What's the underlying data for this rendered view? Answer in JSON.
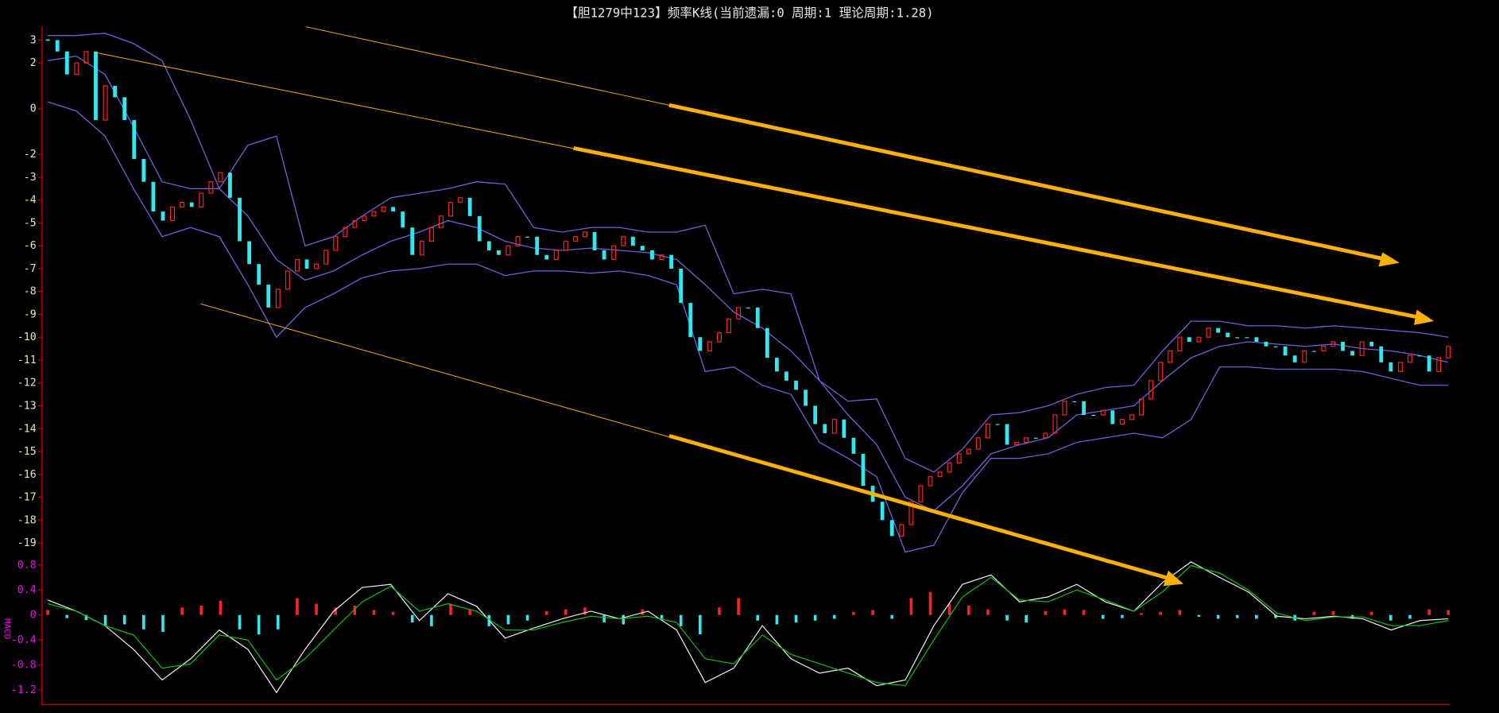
{
  "chart_data": [
    {
      "type": "candlestick",
      "title": "【胆1279中123】频率K线(当前遗漏:0 周期:1 理论周期:1.28)",
      "up_color": "#ff2020",
      "down_color": "#30e8f0",
      "band_color": "#6a62d8",
      "close": [
        3,
        2.5,
        1.5,
        2,
        2.5,
        -0.5,
        1,
        0.5,
        -0.5,
        -2.2,
        -3.2,
        -4.5,
        -4.9,
        -4.3,
        -4.1,
        -4.3,
        -3.7,
        -3.2,
        -2.8,
        -3.9,
        -5.8,
        -6.8,
        -7.7,
        -8.7,
        -7.9,
        -7.1,
        -6.6,
        -7,
        -6.8,
        -6.2,
        -5.6,
        -5.2,
        -4.9,
        -4.7,
        -4.5,
        -4.3,
        -4.5,
        -5.2,
        -6.4,
        -5.8,
        -5.2,
        -4.7,
        -4.1,
        -3.9,
        -4.7,
        -5.8,
        -6.2,
        -6.4,
        -6,
        -5.6,
        -5.6,
        -6.4,
        -6.6,
        -6.2,
        -5.8,
        -5.6,
        -5.4,
        -6.2,
        -6.6,
        -6,
        -5.6,
        -6,
        -6.2,
        -6.6,
        -6.4,
        -7,
        -8.5,
        -10,
        -10.6,
        -10.2,
        -9.8,
        -9.2,
        -8.7,
        -8.7,
        -9.6,
        -10.9,
        -11.5,
        -11.9,
        -12.3,
        -13,
        -13.8,
        -14.2,
        -13.6,
        -14.4,
        -15.1,
        -16.5,
        -17.2,
        -18,
        -18.7,
        -18.2,
        -17.2,
        -16.5,
        -16.1,
        -15.9,
        -15.5,
        -15.1,
        -14.9,
        -14.4,
        -13.8,
        -13.8,
        -14.7,
        -14.6,
        -14.4,
        -14.4,
        -14.2,
        -13.4,
        -12.8,
        -12.8,
        -13.4,
        -13.4,
        -13.2,
        -13.8,
        -13.6,
        -13.4,
        -12.7,
        -11.9,
        -11.1,
        -10.6,
        -10,
        -10.2,
        -10,
        -9.6,
        -9.8,
        -10,
        -10,
        -10,
        -10.2,
        -10.4,
        -10.4,
        -10.8,
        -11.1,
        -10.6,
        -10.6,
        -10.4,
        -10.2,
        -10.6,
        -10.8,
        -10.2,
        -10.4,
        -11.1,
        -11.5,
        -11.1,
        -10.8,
        -10.8,
        -11.5,
        -10.9,
        -10.4
      ],
      "bands": {
        "upper": [
          3.2,
          3.2,
          3.3,
          2.85,
          2.1,
          -0.5,
          -3.5,
          -1.6,
          -1.2,
          -6,
          -5.6,
          -4.7,
          -3.9,
          -3.7,
          -3.5,
          -3.2,
          -3.3,
          -5.2,
          -5.4,
          -5.2,
          -5.2,
          -5.4,
          -5.4,
          -5.1,
          -8.1,
          -7.9,
          -8.1,
          -11.9,
          -12.8,
          -12.7,
          -15.3,
          -15.9,
          -14.9,
          -13.4,
          -13.3,
          -13,
          -12.5,
          -12.2,
          -12.1,
          -10.6,
          -9.3,
          -9.3,
          -9.5,
          -9.5,
          -9.6,
          -9.5,
          -9.6,
          -9.7,
          -9.8,
          -10
        ],
        "mid": [
          2.1,
          2.3,
          1.5,
          -0.8,
          -3.2,
          -3.5,
          -3.5,
          -4.7,
          -6.6,
          -7.5,
          -7.1,
          -6.4,
          -5.8,
          -5.4,
          -4.9,
          -5.2,
          -5.8,
          -6.1,
          -6.2,
          -6.1,
          -6.2,
          -6.3,
          -6.6,
          -7.7,
          -8.9,
          -9.6,
          -10.6,
          -11.9,
          -13.4,
          -14.7,
          -17,
          -17.6,
          -16.5,
          -15.1,
          -14.7,
          -14.4,
          -13.4,
          -13.2,
          -13,
          -11.9,
          -10.9,
          -10.4,
          -10.2,
          -10.3,
          -10.4,
          -10.3,
          -10.5,
          -10.6,
          -10.8,
          -11.1
        ],
        "lower": [
          0.3,
          -0.1,
          -1.2,
          -3.5,
          -5.6,
          -5.2,
          -5.6,
          -7.7,
          -10,
          -8.7,
          -8.1,
          -7.4,
          -7.1,
          -7,
          -6.8,
          -6.8,
          -7.3,
          -7.1,
          -7.1,
          -7.2,
          -7.1,
          -7.3,
          -7.7,
          -11.5,
          -11.3,
          -12.1,
          -12.5,
          -14.6,
          -15.3,
          -16.1,
          -19.4,
          -19.1,
          -16.8,
          -15.3,
          -15.3,
          -15.1,
          -14.6,
          -14.4,
          -14.2,
          -14.4,
          -13.6,
          -11.3,
          -11.3,
          -11.4,
          -11.4,
          -11.4,
          -11.5,
          -11.8,
          -12.1,
          -12.1
        ]
      },
      "ylim": [
        -19.5,
        3.5
      ],
      "yticks": [
        3,
        2,
        0,
        -2,
        -3,
        -4,
        -5,
        -6,
        -7,
        -8,
        -9,
        -10,
        -11,
        -12,
        -13,
        -14,
        -15,
        -16,
        -17,
        -18,
        -19
      ]
    },
    {
      "type": "macd",
      "label": "MACD",
      "pos_color": "#ff2020",
      "neg_color": "#30e8f0",
      "histogram": [
        0.08,
        -0.05,
        -0.08,
        -0.18,
        -0.15,
        -0.23,
        -0.27,
        0.12,
        0.15,
        0.23,
        -0.23,
        -0.31,
        -0.23,
        0.27,
        0.18,
        0.12,
        0.15,
        0.08,
        0.05,
        -0.12,
        -0.18,
        0.18,
        0.09,
        -0.18,
        -0.15,
        -0.09,
        0.06,
        0.09,
        0.12,
        -0.12,
        -0.15,
        0.09,
        -0.06,
        -0.18,
        -0.31,
        0.12,
        0.27,
        -0.09,
        -0.15,
        -0.12,
        -0.09,
        -0.06,
        0.05,
        0.08,
        -0.06,
        0.27,
        0.37,
        0.18,
        0.15,
        0.09,
        -0.09,
        -0.12,
        0.06,
        0.09,
        0.08,
        -0.06,
        -0.05,
        0.03,
        0.05,
        0.08,
        -0.03,
        -0.06,
        -0.05,
        -0.06,
        -0.05,
        -0.09,
        0.05,
        0.06,
        -0.06,
        0.05,
        -0.09,
        -0.06,
        0.09,
        0.08
      ],
      "series": [
        {
          "color": "#f0f0f0",
          "values": [
            0.24,
            0.06,
            -0.17,
            -0.55,
            -1.04,
            -0.7,
            -0.24,
            -0.55,
            -1.24,
            -0.55,
            0.06,
            0.44,
            0.49,
            -0.09,
            0.34,
            0.14,
            -0.37,
            -0.21,
            -0.06,
            0.06,
            -0.06,
            0.06,
            -0.24,
            -1.08,
            -0.85,
            -0.17,
            -0.7,
            -0.93,
            -0.85,
            -1.13,
            -1.04,
            -0.17,
            0.49,
            0.64,
            0.21,
            0.29,
            0.49,
            0.21,
            0.06,
            0.52,
            0.85,
            0.6,
            0.37,
            -0.02,
            -0.06,
            -0.02,
            -0.06,
            -0.24,
            -0.09,
            -0.06
          ]
        },
        {
          "color": "#10c010",
          "values": [
            0.18,
            0.06,
            -0.17,
            -0.32,
            -0.85,
            -0.78,
            -0.32,
            -0.4,
            -1.04,
            -0.7,
            -0.24,
            0.21,
            0.46,
            0.06,
            0.18,
            0.06,
            -0.24,
            -0.24,
            -0.12,
            -0.02,
            -0.06,
            -0.02,
            -0.12,
            -0.7,
            -0.78,
            -0.32,
            -0.63,
            -0.78,
            -0.93,
            -1.08,
            -1.13,
            -0.4,
            0.29,
            0.6,
            0.24,
            0.21,
            0.4,
            0.24,
            0.06,
            0.37,
            0.79,
            0.67,
            0.4,
            0.03,
            -0.09,
            -0.03,
            -0.03,
            -0.17,
            -0.17,
            -0.09
          ]
        }
      ],
      "ylim": [
        -1.43,
        0.97
      ],
      "yticks": [
        0.8,
        0.4,
        0,
        -0.4,
        -0.8,
        -1.2
      ]
    }
  ]
}
